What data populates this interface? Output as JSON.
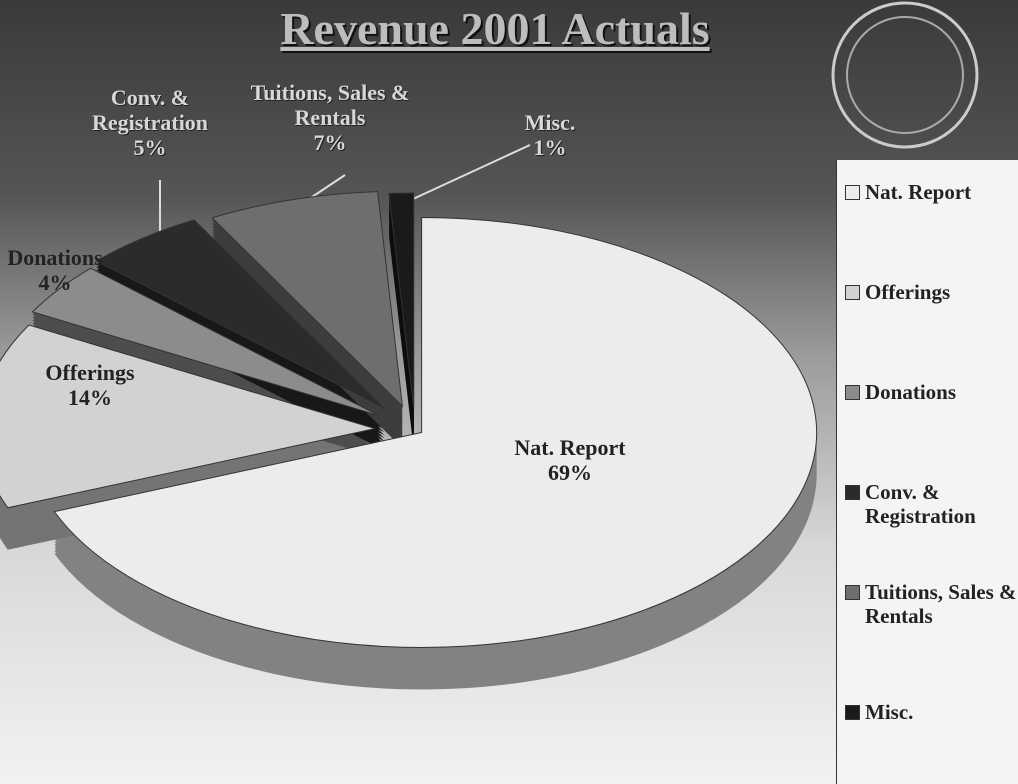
{
  "chart_data": {
    "type": "pie",
    "title": "Revenue 2001 Actuals",
    "categories": [
      "Nat. Report",
      "Offerings",
      "Donations",
      "Conv. & Registration",
      "Tuitions, Sales & Rentals",
      "Misc."
    ],
    "values": [
      69,
      14,
      4,
      5,
      7,
      1
    ],
    "value_labels": [
      "69%",
      "14%",
      "4%",
      "5%",
      "7%",
      "1%"
    ],
    "colors": [
      "#ececec",
      "#d2d2d2",
      "#8c8c8c",
      "#2b2b2b",
      "#6e6e6e",
      "#1a1a1a"
    ],
    "legend": "right"
  }
}
